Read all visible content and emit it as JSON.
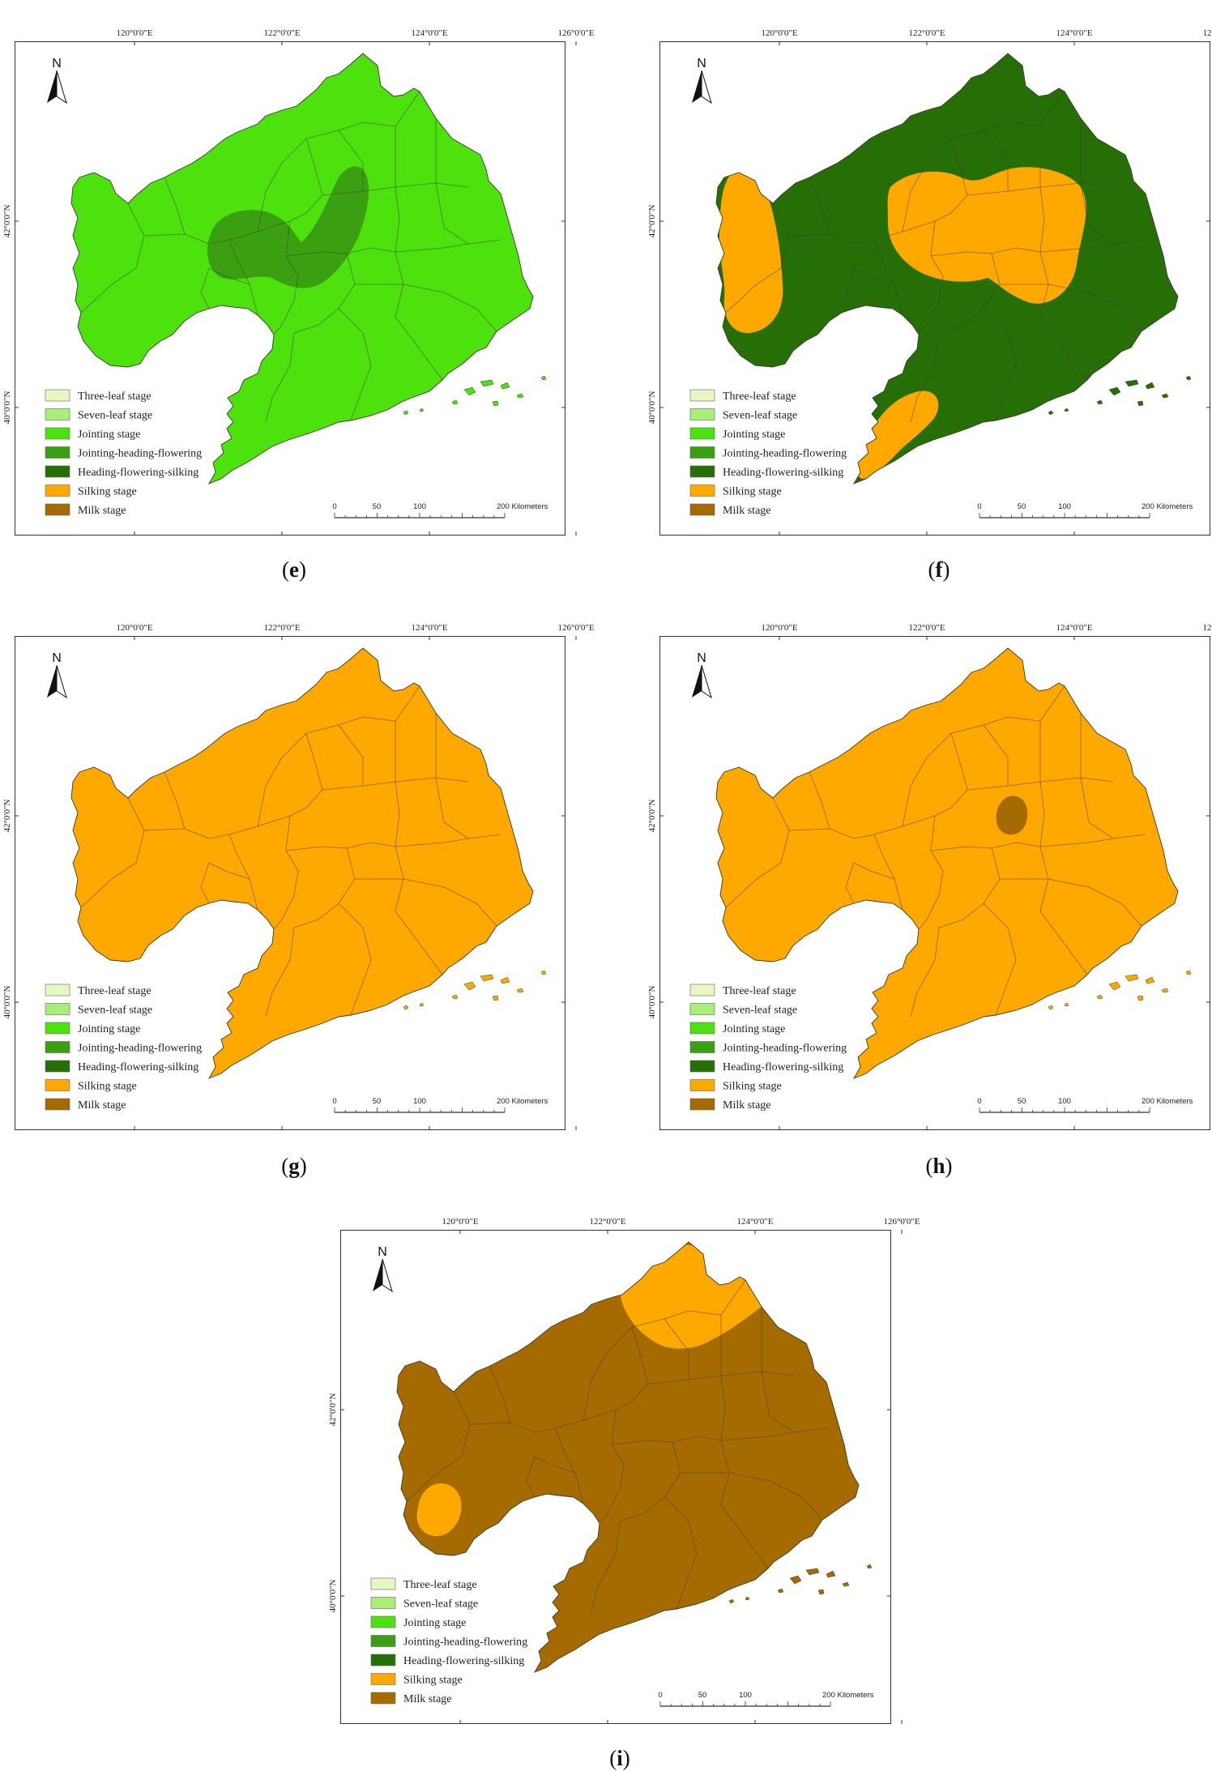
{
  "coords": {
    "lon": [
      "120°0'0\"E",
      "122°0'0\"E",
      "124°0'0\"E",
      "126°0'0\"E"
    ],
    "lat": [
      "42°0'0\"N",
      "40°0'0\"N"
    ]
  },
  "north_label": "N",
  "legend": [
    {
      "label": "Three-leaf stage",
      "color": "#e6f7c4"
    },
    {
      "label": "Seven-leaf stage",
      "color": "#a8ee78"
    },
    {
      "label": "Jointing stage",
      "color": "#4de10d"
    },
    {
      "label": "Jointing-heading-flowering",
      "color": "#3aa012"
    },
    {
      "label": "Heading-flowering-silking",
      "color": "#266f07"
    },
    {
      "label": "Silking stage",
      "color": "#ffa800"
    },
    {
      "label": "Milk stage",
      "color": "#a66b00"
    }
  ],
  "scalebar": {
    "ticks": [
      "0",
      "50",
      "100",
      "200 Kilometers"
    ]
  },
  "panels": [
    {
      "id": "e",
      "caption": "e",
      "base_stage": "Jointing stage",
      "patches": [
        "Jointing-heading-flowering"
      ]
    },
    {
      "id": "f",
      "caption": "f",
      "base_stage": "Heading-flowering-silking",
      "patches": [
        "Silking stage"
      ]
    },
    {
      "id": "g",
      "caption": "g",
      "base_stage": "Silking stage",
      "patches": []
    },
    {
      "id": "h",
      "caption": "h",
      "base_stage": "Silking stage",
      "patches": [
        "Milk stage"
      ]
    },
    {
      "id": "i",
      "caption": "i",
      "base_stage": "Milk stage",
      "patches": [
        "Silking stage"
      ]
    }
  ]
}
